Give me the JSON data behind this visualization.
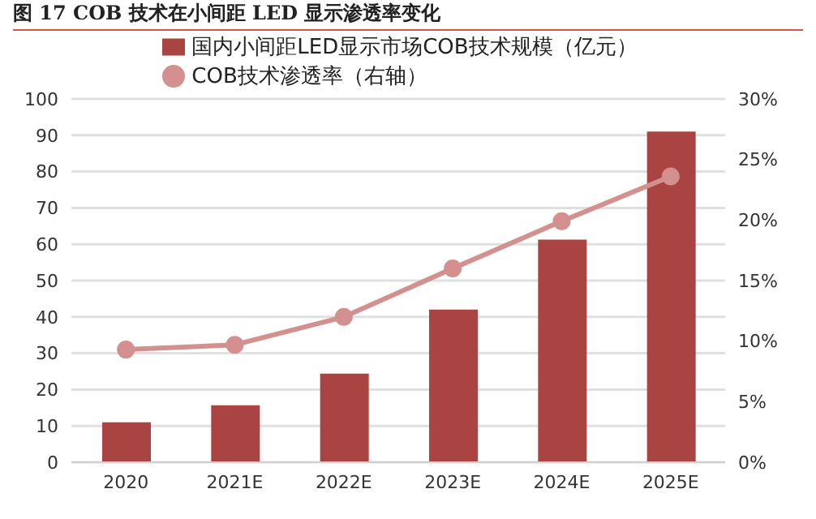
{
  "chart_data": {
    "type": "bar",
    "title": "图 17 COB 技术在小间距 LED 显示渗透率变化",
    "categories": [
      "2020",
      "2021E",
      "2022E",
      "2023E",
      "2024E",
      "2025E"
    ],
    "series": [
      {
        "name": "国内小间距LED显示市场COB技术规模（亿元）",
        "color": "#a94442",
        "values": [
          11,
          15.7,
          24.4,
          42,
          61.3,
          91
        ]
      },
      {
        "name": "COB技术渗透率（右轴）",
        "type": "line",
        "axis": "y2",
        "color": "#d48f8f",
        "marker": "circle",
        "values": [
          9.3,
          9.7,
          12,
          16,
          19.9,
          23.6
        ]
      }
    ],
    "ylim": [
      0,
      100
    ],
    "yticks": [
      0,
      10,
      20,
      30,
      40,
      50,
      60,
      70,
      80,
      90,
      100
    ],
    "y2lim": [
      0,
      30
    ],
    "y2ticks": [
      {
        "value": 0,
        "label": "0%"
      },
      {
        "value": 5,
        "label": "5%"
      },
      {
        "value": 10,
        "label": "10%"
      },
      {
        "value": 15,
        "label": "15%"
      },
      {
        "value": 20,
        "label": "20%"
      },
      {
        "value": 25,
        "label": "25%"
      },
      {
        "value": 30,
        "label": "30%"
      }
    ],
    "grid": "y",
    "legend": "top"
  }
}
